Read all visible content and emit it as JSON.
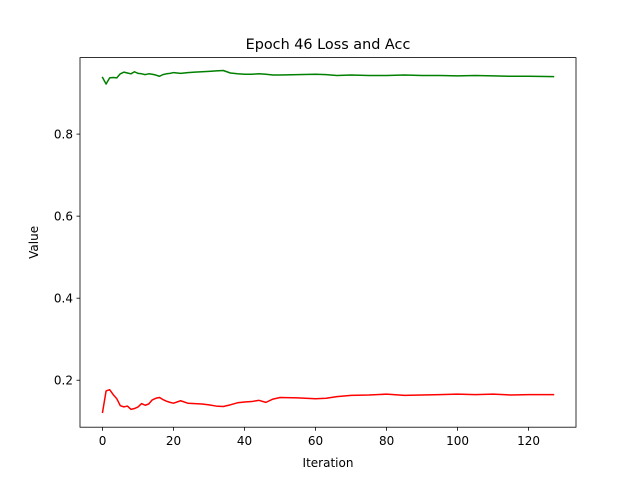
{
  "chart_data": {
    "type": "line",
    "title": "Epoch 46 Loss and Acc",
    "xlabel": "Iteration",
    "ylabel": "Value",
    "xlim": [
      -6.35,
      133.35
    ],
    "ylim": [
      0.0855,
      0.9865
    ],
    "xticks": [
      0,
      20,
      40,
      60,
      80,
      100,
      120
    ],
    "yticks": [
      0.2,
      0.4,
      0.6,
      0.8
    ],
    "ytick_labels": [
      "0.2",
      "0.4",
      "0.6",
      "0.8"
    ],
    "grid": false,
    "legend": "none",
    "series": [
      {
        "color": "#008000",
        "x": [
          0,
          1,
          2,
          3,
          4,
          5,
          6,
          7,
          8,
          9,
          10,
          11,
          12,
          13,
          14,
          15,
          16,
          17,
          18,
          19,
          20,
          22,
          24,
          26,
          28,
          30,
          32,
          34,
          36,
          38,
          40,
          42,
          44,
          46,
          48,
          50,
          55,
          60,
          63,
          66,
          70,
          75,
          80,
          85,
          90,
          95,
          100,
          105,
          110,
          115,
          120,
          127
        ],
        "values": [
          0.938,
          0.922,
          0.937,
          0.938,
          0.937,
          0.947,
          0.951,
          0.949,
          0.947,
          0.952,
          0.948,
          0.947,
          0.945,
          0.947,
          0.946,
          0.944,
          0.941,
          0.945,
          0.947,
          0.948,
          0.95,
          0.948,
          0.95,
          0.951,
          0.952,
          0.953,
          0.954,
          0.955,
          0.949,
          0.947,
          0.946,
          0.946,
          0.947,
          0.946,
          0.944,
          0.944,
          0.945,
          0.946,
          0.945,
          0.943,
          0.944,
          0.943,
          0.943,
          0.944,
          0.943,
          0.943,
          0.942,
          0.943,
          0.942,
          0.941,
          0.941,
          0.94
        ]
      },
      {
        "color": "#ff0000",
        "x": [
          0,
          1,
          2,
          3,
          4,
          5,
          6,
          7,
          8,
          9,
          10,
          11,
          12,
          13,
          14,
          15,
          16,
          17,
          18,
          19,
          20,
          22,
          24,
          26,
          28,
          30,
          32,
          34,
          36,
          38,
          40,
          42,
          44,
          46,
          48,
          50,
          55,
          60,
          63,
          66,
          70,
          75,
          80,
          85,
          90,
          95,
          100,
          105,
          110,
          115,
          120,
          127
        ],
        "values": [
          0.122,
          0.174,
          0.177,
          0.165,
          0.155,
          0.138,
          0.135,
          0.137,
          0.129,
          0.131,
          0.135,
          0.143,
          0.139,
          0.142,
          0.152,
          0.156,
          0.158,
          0.153,
          0.149,
          0.146,
          0.144,
          0.15,
          0.144,
          0.143,
          0.142,
          0.14,
          0.137,
          0.136,
          0.14,
          0.145,
          0.147,
          0.148,
          0.151,
          0.146,
          0.154,
          0.158,
          0.157,
          0.155,
          0.156,
          0.16,
          0.163,
          0.164,
          0.166,
          0.163,
          0.164,
          0.165,
          0.166,
          0.165,
          0.166,
          0.164,
          0.165,
          0.165
        ]
      }
    ]
  }
}
